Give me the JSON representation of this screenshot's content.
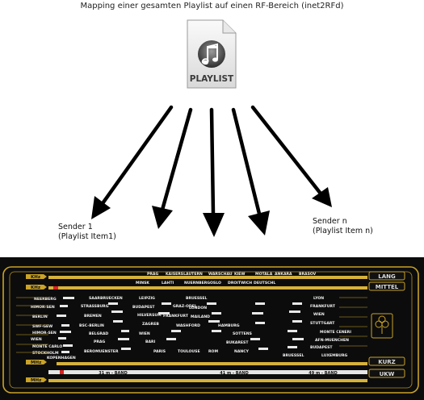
{
  "title": "Mapping einer gesamten Playlist auf einen RF-Bereich (inet2RFd)",
  "playlist_icon": {
    "icon": "music-note-icon",
    "label": "PLAYLIST"
  },
  "sender_first": {
    "line1": "Sender 1",
    "line2": "(Playlist Item1)"
  },
  "sender_last": {
    "line1": "Sender n",
    "line2": "(Playlist Item n)"
  },
  "radio_dial": {
    "band_labels": [
      "LANG",
      "MITTEL",
      "KURZ",
      "UKW"
    ],
    "unit_labels": [
      "KHz",
      "KHz",
      "MHz",
      "MHz"
    ],
    "lw_stations": [
      "PRAG",
      "KAISERSLAUTERN",
      "WARSCHAU",
      "KIEW",
      "MOTALA",
      "ANKARA",
      "MINSK",
      "LAHTI",
      "NUERNBERG",
      "OSLO",
      "DROITWICH",
      "DEUTSCHL",
      "BRASOV"
    ],
    "mw_left": [
      "NEERBERG",
      "HIMOR-SEN",
      "BERLIN",
      "SWF-GEW",
      "HIMOR-SEN",
      "WIEN",
      "MONTE CARLO",
      "STOCKHOLM",
      "KOPENHAGEN"
    ],
    "mw_center": [
      "SAARBRUECKEN",
      "STRASSBURG",
      "BREMEN",
      "BSC-BERLIN",
      "BELGRAD",
      "PRAG",
      "BEROMUENSTER",
      "LEIPZIG",
      "BUDAPEST",
      "HILVERSUM",
      "ZAGREB",
      "WIEN",
      "BRUESSEL",
      "GRAZ-ODEL",
      "FRANKFURT",
      "LONDON",
      "MAILAND",
      "WASHFORD",
      "BARI",
      "SOTTENS",
      "BUKAREST",
      "HAMBURG",
      "PARIS",
      "TOULOUSE",
      "ROM",
      "NANCY"
    ],
    "mw_right": [
      "LYON",
      "FRANKFURT",
      "WIEN",
      "STUTTGART",
      "MONTE CENERI",
      "AFN-MUENCHEN",
      "BUDAPEST",
      "BRUESSEL",
      "LUXEMBURG"
    ],
    "sw_bands": [
      "31 m - BAND",
      "41 m - BAND",
      "49 m - BAND"
    ]
  }
}
